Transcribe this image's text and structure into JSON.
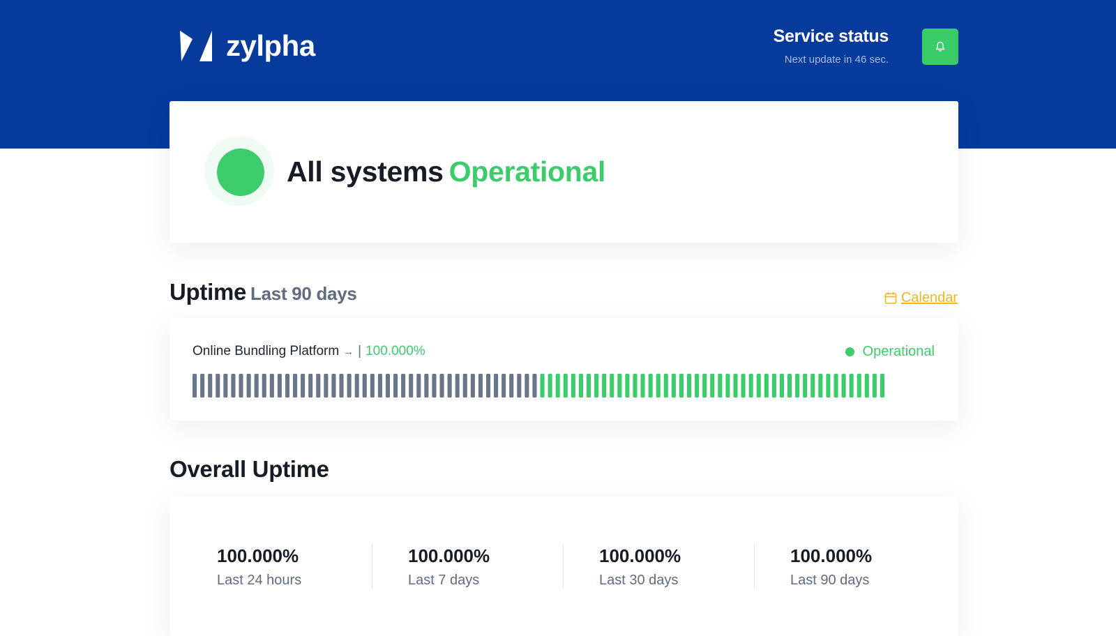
{
  "header": {
    "brand": "zylpha",
    "service_title": "Service status",
    "next_update": "Next update in 46 sec.",
    "subscribe_icon": "bell-icon"
  },
  "overview": {
    "prefix": "All systems",
    "status": "Operational",
    "status_color": "#3ccc6b"
  },
  "uptime": {
    "title": "Uptime",
    "range": "Last 90 days",
    "calendar_label": "Calendar",
    "calendar_icon": "calendar-icon",
    "accent": "#f2b51c",
    "service": {
      "name": "Online Bundling Platform",
      "arrow": "→",
      "separator": "|",
      "percent": "100.000%",
      "status": "Operational"
    },
    "bars": {
      "no_data_days": 45,
      "operational_days": 45,
      "no_data_color": "#6a7589",
      "operational_color": "#3ccc6b"
    }
  },
  "overall": {
    "title": "Overall Uptime",
    "stats": [
      {
        "value": "100.000%",
        "label": "Last 24 hours"
      },
      {
        "value": "100.000%",
        "label": "Last 7 days"
      },
      {
        "value": "100.000%",
        "label": "Last 30 days"
      },
      {
        "value": "100.000%",
        "label": "Last 90 days"
      }
    ]
  }
}
